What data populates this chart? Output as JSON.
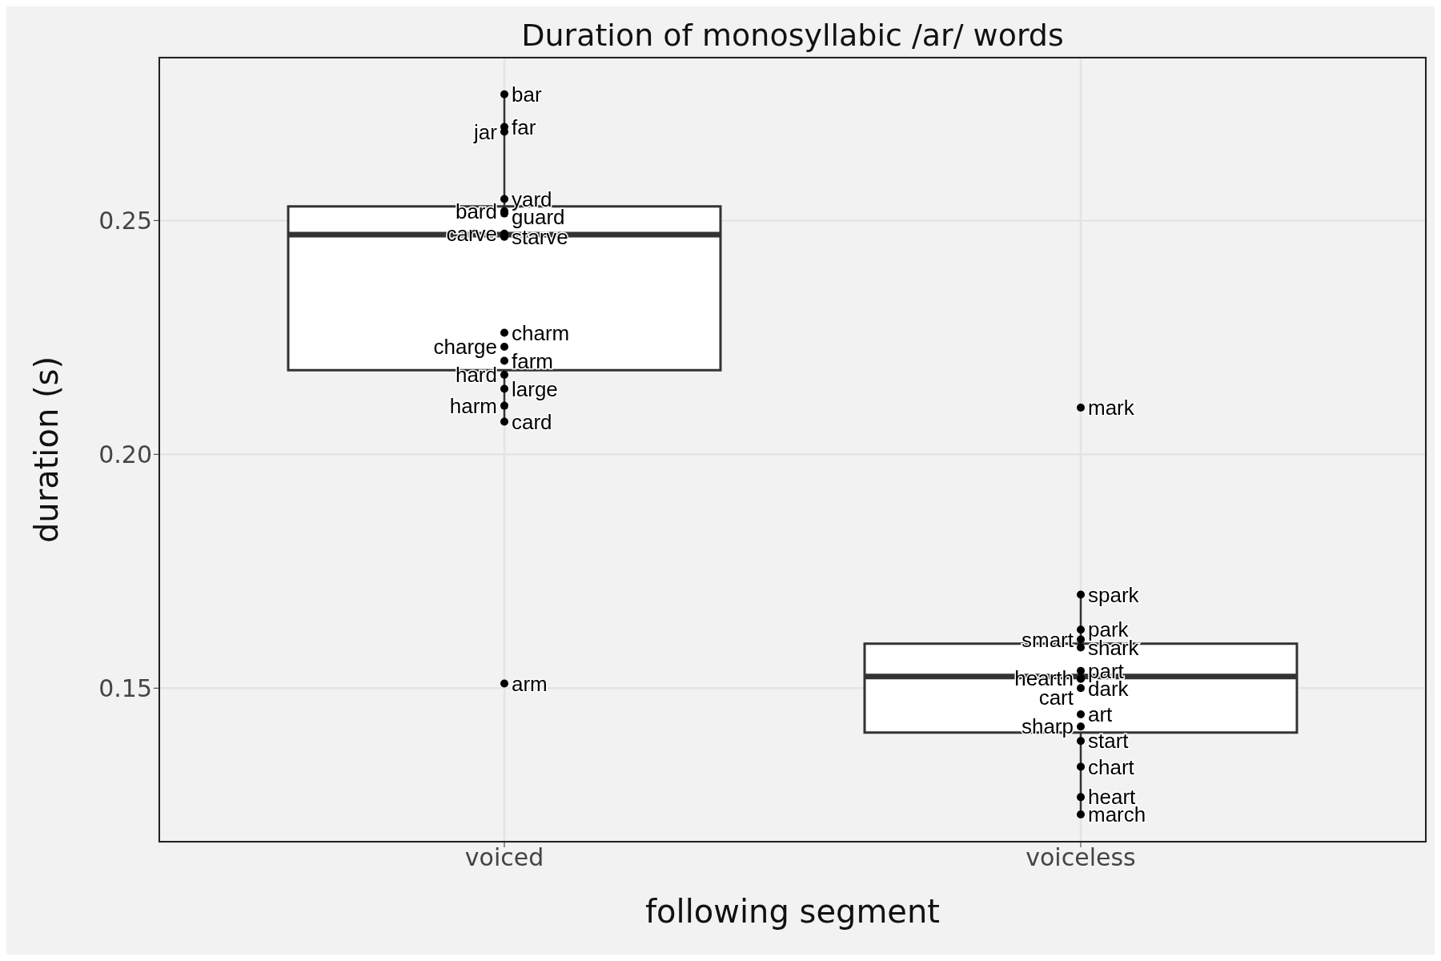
{
  "chart_data": {
    "type": "box",
    "title": "Duration of monosyllabic /ar/ words",
    "xlabel": "following segment",
    "ylabel": "duration (s)",
    "categories": [
      "voiced",
      "voiceless"
    ],
    "boxes": [
      {
        "low": 0.207,
        "q1": 0.218,
        "median": 0.247,
        "q3": 0.253,
        "high": 0.277
      },
      {
        "low": 0.123,
        "q1": 0.1405,
        "median": 0.1525,
        "q3": 0.1595,
        "high": 0.17
      }
    ],
    "ylim": [
      0.117,
      0.285
    ],
    "yticks": [
      {
        "value": 0.15,
        "label": "0.15"
      },
      {
        "value": 0.2,
        "label": "0.20"
      },
      {
        "value": 0.25,
        "label": "0.25"
      }
    ],
    "grid": true,
    "series": [
      {
        "type": "scatter",
        "marker": "circle",
        "color": "#000000",
        "x": [
          "voiced",
          "voiced",
          "voiced",
          "voiced",
          "voiced",
          "voiced",
          "voiced",
          "voiced",
          "voiced",
          "voiced",
          "voiced",
          "voiced",
          "voiced",
          "voiced",
          "voiced",
          "voiced",
          "voiceless",
          "voiceless",
          "voiceless",
          "voiceless",
          "voiceless",
          "voiceless",
          "voiceless",
          "voiceless",
          "voiceless",
          "voiceless",
          "voiceless",
          "voiceless",
          "voiceless",
          "voiceless",
          "voiceless"
        ],
        "values": [
          0.277,
          0.27,
          0.269,
          0.2546,
          0.252,
          0.2515,
          0.2472,
          0.2465,
          0.226,
          0.223,
          0.22,
          0.217,
          0.214,
          0.2104,
          0.207,
          0.151,
          0.21,
          0.17,
          0.1625,
          0.1604,
          0.1587,
          0.1537,
          0.1521,
          0.152,
          0.15,
          0.1444,
          0.1418,
          0.1387,
          0.1332,
          0.1267,
          0.123
        ],
        "value_labels": [
          "bar",
          "far",
          "jar",
          "yard",
          "bard",
          "guard",
          "carve",
          "starve",
          "charm",
          "charge",
          "farm",
          "hard",
          "large",
          "harm",
          "card",
          "arm",
          "mark",
          "spark",
          "park",
          "smart",
          "shark",
          "part",
          "hearth",
          "dark",
          "cart",
          "art",
          "sharp",
          "start",
          "chart",
          "heart",
          "march"
        ]
      }
    ]
  }
}
